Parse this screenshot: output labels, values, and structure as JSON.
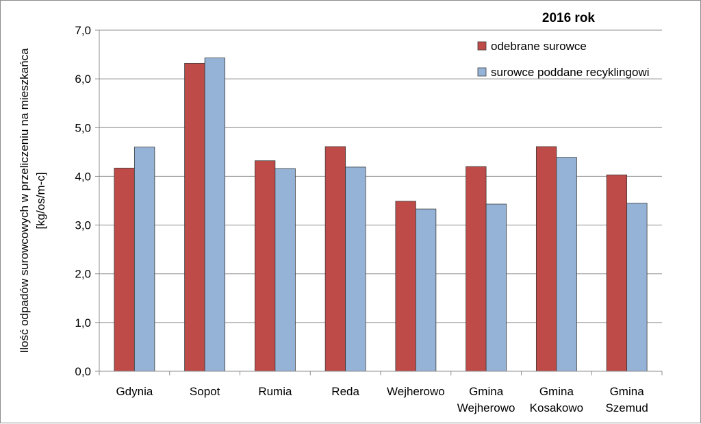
{
  "chart_data": {
    "type": "bar",
    "title": "2016 rok",
    "ylabel_lines": [
      "Ilość odpadów surowcowych w przeliczeniu na mieszkańca",
      "[kg/os/m-c]"
    ],
    "xlabel": "",
    "ylim": [
      0,
      7
    ],
    "ytick_step": 1,
    "ytick_labels": [
      "0,0",
      "1,0",
      "2,0",
      "3,0",
      "4,0",
      "5,0",
      "6,0",
      "7,0"
    ],
    "categories": [
      [
        "Gdynia"
      ],
      [
        "Sopot"
      ],
      [
        "Rumia"
      ],
      [
        "Reda"
      ],
      [
        "Wejherowo"
      ],
      [
        "Gmina",
        "Wejherowo"
      ],
      [
        "Gmina",
        "Kosakowo"
      ],
      [
        "Gmina",
        "Szemud"
      ]
    ],
    "series": [
      {
        "name": "odebrane surowce",
        "color": "#be4b48",
        "values": [
          4.17,
          6.32,
          4.32,
          4.61,
          3.49,
          4.2,
          4.61,
          4.03
        ]
      },
      {
        "name": "surowce poddane recyklingowi",
        "color": "#95b3d7",
        "values": [
          4.6,
          6.43,
          4.16,
          4.19,
          3.33,
          3.43,
          4.39,
          3.45
        ]
      }
    ],
    "grid": true,
    "legend_position": "top-right"
  }
}
